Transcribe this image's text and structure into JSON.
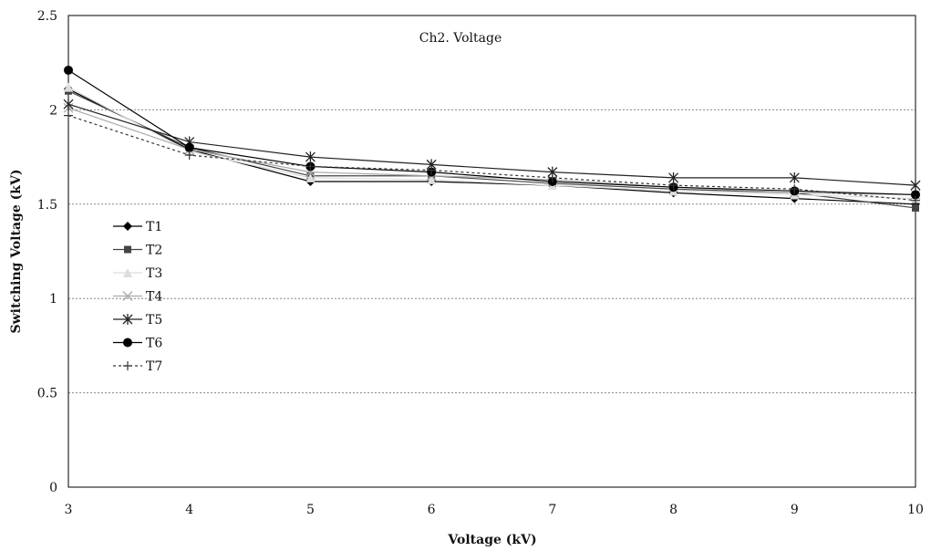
{
  "chart_data": {
    "type": "line",
    "title": "Ch2. Voltage",
    "xlabel": "Voltage (kV)",
    "ylabel": "Switching Voltage (kV)",
    "xlim": [
      3,
      10
    ],
    "ylim": [
      0,
      2.5
    ],
    "x_ticks": [
      "3",
      "4",
      "5",
      "6",
      "7",
      "8",
      "9",
      "10"
    ],
    "y_ticks": [
      "0",
      "0.5",
      "1",
      "1.5",
      "2",
      "2.5"
    ],
    "grid": "horizontal dotted",
    "legend_position": "left",
    "x": [
      3,
      4,
      5,
      6,
      7,
      8,
      9,
      10
    ],
    "series": [
      {
        "name": "T1",
        "marker": "diamond",
        "color": "#000000",
        "dash": "",
        "values": [
          2.11,
          1.79,
          1.62,
          1.62,
          1.6,
          1.56,
          1.53,
          1.5
        ]
      },
      {
        "name": "T2",
        "marker": "square",
        "color": "#444444",
        "dash": "",
        "values": [
          2.1,
          1.8,
          1.65,
          1.65,
          1.61,
          1.58,
          1.56,
          1.48
        ]
      },
      {
        "name": "T3",
        "marker": "triangle",
        "color": "#dddddd",
        "dash": "",
        "values": [
          2.12,
          1.78,
          1.64,
          1.63,
          1.6,
          1.57,
          1.55,
          1.53
        ]
      },
      {
        "name": "T4",
        "marker": "x",
        "color": "#aaaaaa",
        "dash": "",
        "values": [
          2.01,
          1.79,
          1.67,
          1.65,
          1.63,
          1.59,
          1.56,
          1.55
        ]
      },
      {
        "name": "T5",
        "marker": "star",
        "color": "#222222",
        "dash": "",
        "values": [
          2.03,
          1.83,
          1.75,
          1.71,
          1.67,
          1.64,
          1.64,
          1.6
        ]
      },
      {
        "name": "T6",
        "marker": "circle",
        "color": "#000000",
        "dash": "",
        "values": [
          2.21,
          1.8,
          1.7,
          1.67,
          1.62,
          1.59,
          1.57,
          1.55
        ]
      },
      {
        "name": "T7",
        "marker": "plus",
        "color": "#333333",
        "dash": "3,3",
        "values": [
          1.97,
          1.76,
          1.7,
          1.68,
          1.64,
          1.6,
          1.58,
          1.52
        ]
      }
    ]
  }
}
